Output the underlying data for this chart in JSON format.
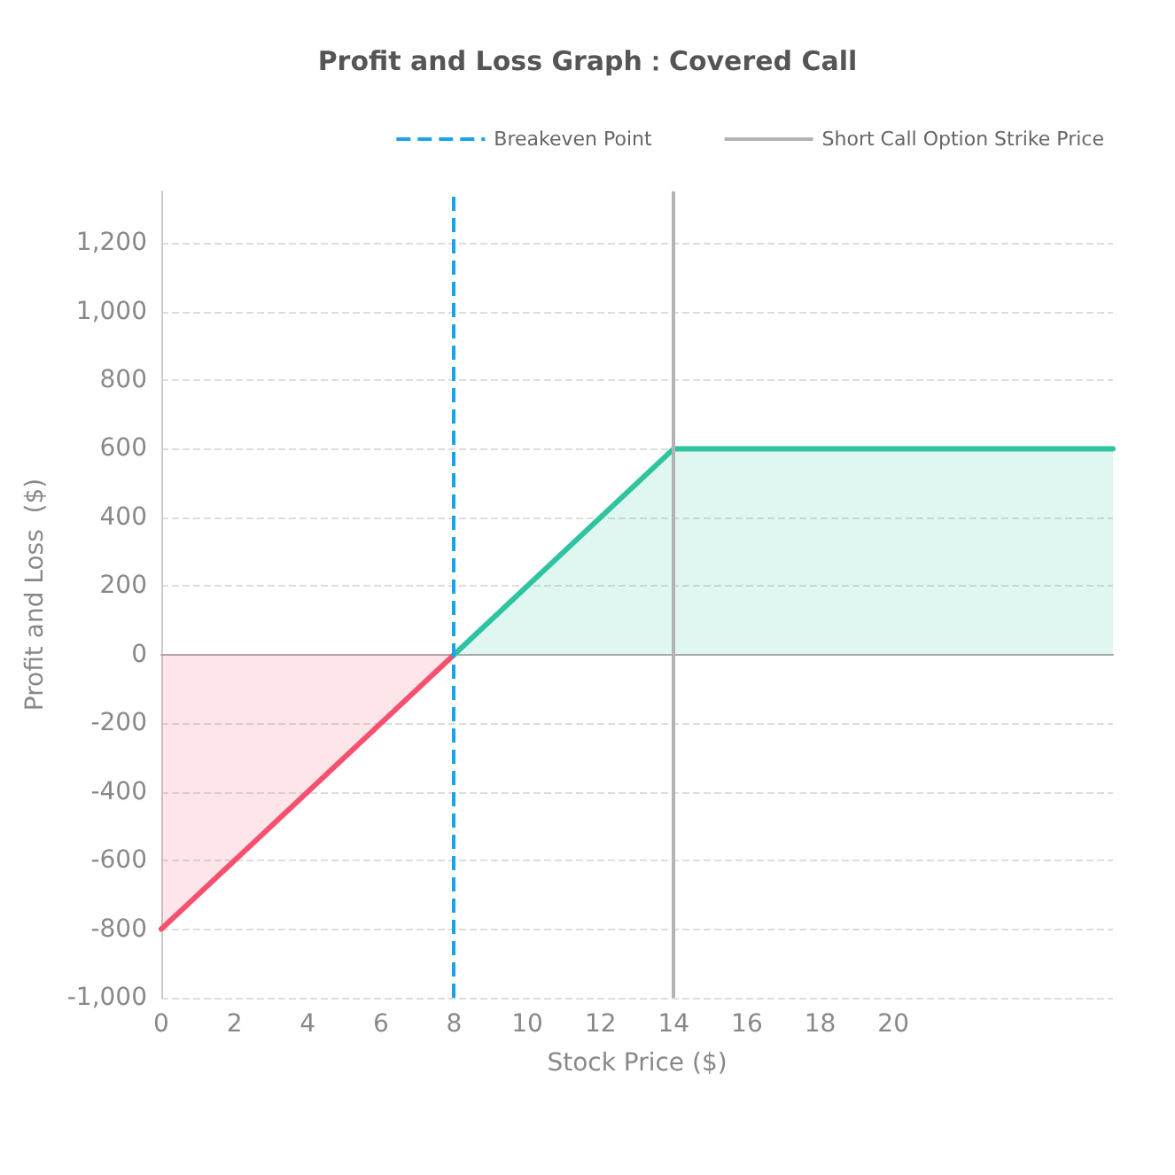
{
  "chart_data": {
    "type": "area",
    "title": "Profit and Loss Graph：Covered Call",
    "xlabel": "Stock Price ($)",
    "ylabel": "Profit and Loss  ($)",
    "series": [
      {
        "color": "#f5506e",
        "x": [
          0,
          8
        ],
        "values": [
          -800,
          0
        ]
      },
      {
        "color": "#2ec4a0",
        "x": [
          8,
          14,
          26
        ],
        "values": [
          0,
          600,
          600
        ]
      }
    ],
    "xlim": [
      0,
      26
    ],
    "xticks": [
      0,
      2,
      4,
      6,
      8,
      10,
      12,
      14,
      16,
      18,
      20
    ],
    "ylim": [
      -1000,
      1350
    ],
    "yticks": [
      {
        "value": -1000,
        "label": "-1,000"
      },
      -800,
      -600,
      -400,
      -200,
      0,
      200,
      400,
      600,
      800,
      {
        "value": 1000,
        "label": "1,000"
      },
      {
        "value": 1200,
        "label": "1,200"
      }
    ],
    "ref_lines": [
      {
        "axis": "x",
        "value": 8,
        "label": "Breakeven Point",
        "color": "#1aa3e8",
        "line_style": "dashed"
      },
      {
        "axis": "x",
        "value": 14,
        "label": "Short Call Option Strike Price",
        "color": "#b3b3b3",
        "line_style": "solid"
      }
    ],
    "grid": "y",
    "legend": "top right",
    "marker": "none",
    "line_style": "solid"
  }
}
